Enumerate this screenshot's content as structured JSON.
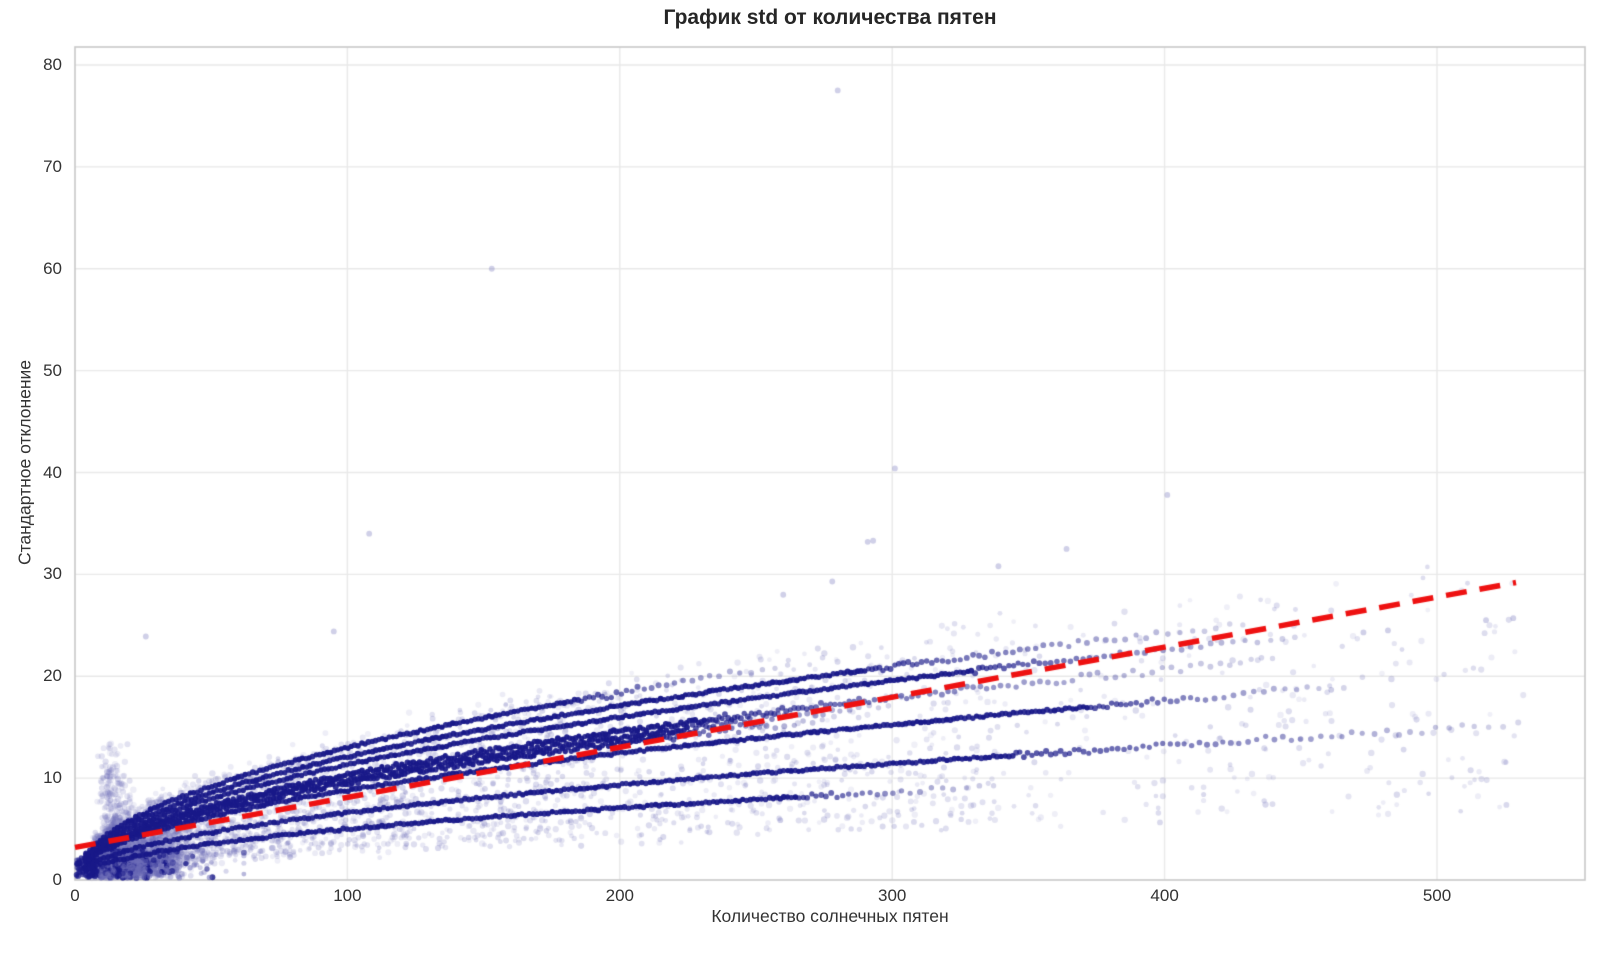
{
  "chart_data": {
    "type": "scatter",
    "title": "График std от количества пятен",
    "xlabel": "Количество солнечных пятен",
    "ylabel": "Стандартное отклонение",
    "xlim": [
      0,
      554
    ],
    "ylim": [
      0,
      81.8
    ],
    "xticks": [
      0,
      100,
      200,
      300,
      400,
      500
    ],
    "yticks": [
      0,
      10,
      20,
      30,
      40,
      50,
      60,
      70,
      80
    ],
    "grid": true,
    "legend": null,
    "colors": {
      "curve_points": "#191989",
      "cloud_points": "#6d6db8",
      "trend": "#ee1111",
      "grid_line": "#e9e9e9",
      "frame": "#c9c9c9",
      "tick_text": "#333333",
      "title_text": "#262626"
    },
    "trend_line": {
      "style": "dashed",
      "x": [
        0,
        529
      ],
      "y": [
        3.2,
        29.2
      ],
      "dash": [
        21,
        13
      ],
      "width": 5.5
    },
    "sqrt_curves": [
      {
        "name": "band-k1.30",
        "k": 1.3,
        "x_start": 4,
        "x_dark_end": 185,
        "x_fade_end": 262,
        "jitter": 0.1,
        "step": 1.15
      },
      {
        "name": "band-k1.21",
        "k": 1.21,
        "x_start": 4,
        "x_dark_end": 290,
        "x_fade_end": 430,
        "jitter": 0.1,
        "step": 1.15
      },
      {
        "name": "band-k1.13",
        "k": 1.13,
        "x_start": 4,
        "x_dark_end": 330,
        "x_fade_end": 452,
        "jitter": 0.1,
        "step": 1.2
      },
      {
        "name": "band-k1.03",
        "k": 1.03,
        "x_start": 4,
        "x_dark_end": 232,
        "x_fade_end": 440,
        "jitter": 0.22,
        "step": 0.95
      },
      {
        "name": "band-k0.99",
        "k": 0.99,
        "x_start": 4,
        "x_dark_end": 225,
        "x_fade_end": 300,
        "jitter": 0.22,
        "step": 0.95
      },
      {
        "name": "band-k0.95",
        "k": 0.95,
        "x_start": 4,
        "x_dark_end": 215,
        "x_fade_end": 280,
        "jitter": 0.2,
        "step": 1.0
      },
      {
        "name": "band-k0.88",
        "k": 0.88,
        "x_start": 4,
        "x_dark_end": 372,
        "x_fade_end": 470,
        "jitter": 0.1,
        "step": 1.2
      },
      {
        "name": "band-k0.66",
        "k": 0.66,
        "x_start": 4,
        "x_dark_end": 345,
        "x_fade_end": 532,
        "jitter": 0.1,
        "step": 1.25
      },
      {
        "name": "band-k0.50",
        "k": 0.5,
        "x_start": 4,
        "x_dark_end": 265,
        "x_fade_end": 340,
        "jitter": 0.1,
        "step": 1.25
      }
    ],
    "cloud": {
      "n": 4300,
      "x_mixture": [
        {
          "w": 0.44,
          "type": "halfnorm",
          "loc": 6,
          "scale": 20
        },
        {
          "w": 0.34,
          "type": "halfnorm",
          "loc": 25,
          "scale": 85
        },
        {
          "w": 0.16,
          "type": "uniform",
          "a": 140,
          "b": 340
        },
        {
          "w": 0.06,
          "type": "uniform",
          "a": 340,
          "b": 532
        }
      ],
      "y_factor_min": 0.3,
      "y_factor_max": 1.38,
      "y_factor_pow": 1.25,
      "y_noise": 0.5,
      "alpha_min": 0.1,
      "alpha_max": 0.26,
      "radius_min": 2.3,
      "radius_max": 3.2
    },
    "bottom_cluster": {
      "n": 950,
      "x_loc": 9,
      "x_scale": 15,
      "y_min": 0.2,
      "y_max": 2.9,
      "alpha_min": 0.15,
      "alpha_max": 0.55,
      "dark_fraction": 0.25
    },
    "origin_cluster": {
      "n": 90,
      "x_min": 0.5,
      "x_max": 8,
      "y_min": 0.3,
      "y_max": 2.2,
      "alpha_min": 0.3,
      "alpha_max": 0.9
    },
    "streaks": [
      {
        "x": 14,
        "sx": 2.2,
        "n": 240,
        "y_max": 13.2
      },
      {
        "x": 19,
        "sx": 1.6,
        "n": 110,
        "y_max": 9.5
      },
      {
        "x": 34,
        "sx": 2.0,
        "n": 80,
        "y_max": 7.8
      },
      {
        "x": 11,
        "sx": 1.2,
        "n": 70,
        "y_max": 11.0
      }
    ],
    "outliers": [
      [
        26,
        23.9
      ],
      [
        95,
        24.4
      ],
      [
        108,
        34.0
      ],
      [
        153,
        60.0
      ],
      [
        260,
        28.0
      ],
      [
        278,
        29.3
      ],
      [
        280,
        77.5
      ],
      [
        291,
        33.2
      ],
      [
        293,
        33.3
      ],
      [
        301,
        40.4
      ],
      [
        339,
        30.8
      ],
      [
        364,
        32.5
      ],
      [
        401,
        37.8
      ],
      [
        473,
        24.3
      ],
      [
        482,
        24.5
      ],
      [
        518,
        25.5
      ],
      [
        528,
        25.7
      ]
    ]
  }
}
